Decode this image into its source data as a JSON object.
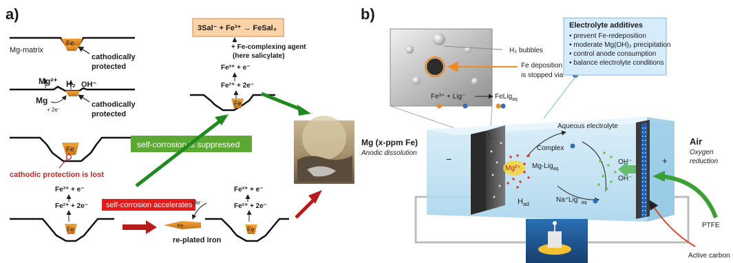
{
  "panel_a": {
    "letter": "a)",
    "mg_matrix": "Mg-matrix",
    "fe": "Fe",
    "cathodically_1": "cathodically",
    "protected_1": "protected",
    "mg2plus": "Mg²⁺",
    "h2": "H₂",
    "oh": "OH⁻",
    "mg": "Mg",
    "plus2e": "+ 2e⁻",
    "cathodically_2": "cathodically",
    "protected_2": "protected",
    "cathodic_lost": "cathodic protection is lost",
    "fe3_1": "Fe³⁺ + e⁻",
    "fe2_1": "Fe²⁺ + 2e⁻",
    "self_corrosion_accelerates": "self-corrosion accelerates",
    "replated": "re-plated iron",
    "plus3e": "+3e⁻",
    "fe3_2": "Fe³⁺ + e⁻",
    "fe2_2": "Fe²⁺ + 2e⁻",
    "suppressed": "self-corrosion is suppressed",
    "reaction": "3Sal⁻ + Fe³⁺ → FeSal₃",
    "complexing_1": "+ Fe-complexing agent",
    "complexing_2": "(here salicylate)",
    "fe3_3": "Fe³⁺ + e⁻",
    "fe2_3": "Fe²⁺ + 2e⁻"
  },
  "panel_b": {
    "letter": "b)",
    "h2_bubbles": "H₂ bubbles",
    "fe_dep_1": "Fe deposition",
    "fe_dep_2": "is stopped via",
    "fe3_lig": "Fe³⁺  +  Lig⁻",
    "felig": "FeLig",
    "felig_sub": "aq",
    "additives_title": "Electrolyte additives",
    "additives": [
      "• prevent Fe-redeposition",
      "• moderate Mg(OH)₂ precipitation",
      "• control anode consumption",
      "• balance electrolyte conditions"
    ],
    "aqueous": "Aqueous electrolyte",
    "mg_label": "Mg (x-ppm Fe)",
    "anodic": "Anodic dissolution",
    "minus": "−",
    "plus": "+",
    "complex": "Complex",
    "mglig": "Mg-Lig",
    "mglig_sub": "aq",
    "mg2": "Mg²⁺",
    "oh1": "OH⁻",
    "oh2": "OH⁻",
    "hads": "H",
    "hads_sub": "ad",
    "nalig": "Na⁺Lig⁻",
    "nalig_sub": "aq",
    "air": "Air",
    "oxygen_1": "Oxygen",
    "oxygen_2": "reduction",
    "ptfe": "PTFE",
    "active_carbon": "Active carbon"
  }
}
